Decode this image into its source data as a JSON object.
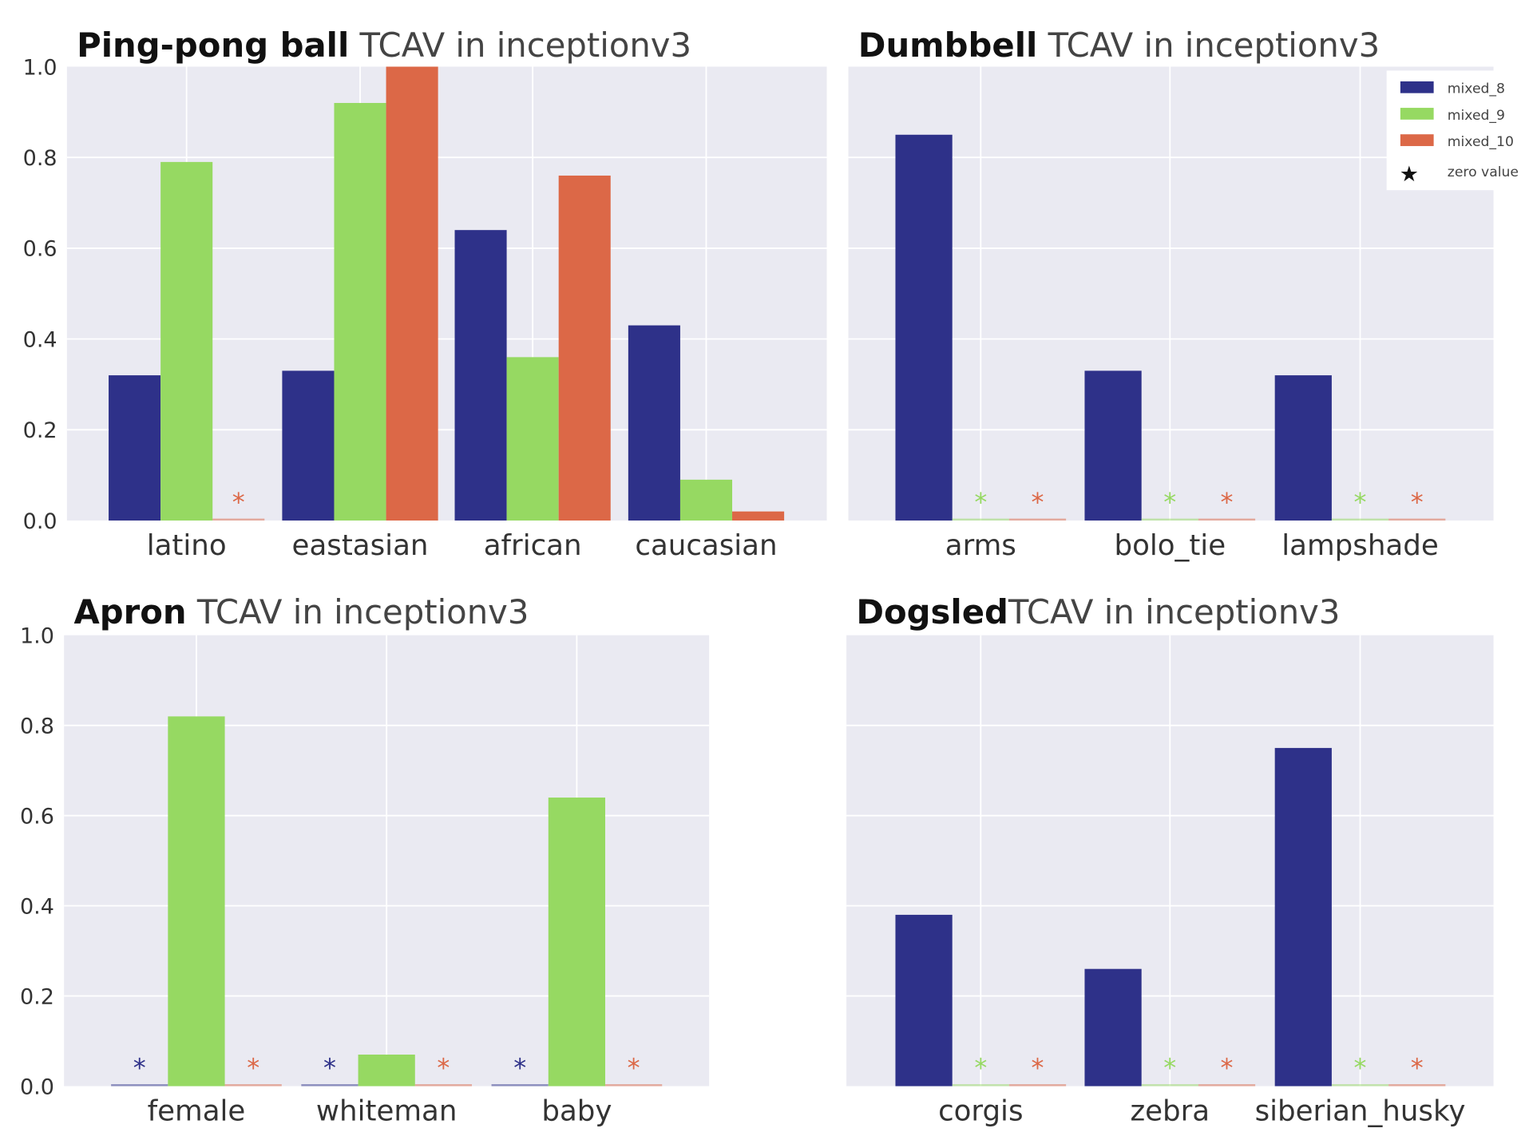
{
  "colors": {
    "mixed_8": "#2e3189",
    "mixed_9": "#96d962",
    "mixed_10": "#dc6847",
    "background": "#eaeaf2",
    "grid": "#ffffff"
  },
  "legend": {
    "items": [
      "mixed_8",
      "mixed_9",
      "mixed_10"
    ],
    "zero_label": "zero value",
    "placement": "top-right of Dumbbell panel"
  },
  "chart_data": [
    {
      "type": "bar",
      "title_bold": "Ping-pong ball",
      "title_rest": " TCAV in inceptionv3",
      "ylim": [
        0,
        1.0
      ],
      "yticks": [
        "0.0",
        "0.2",
        "0.4",
        "0.6",
        "0.8",
        "1.0"
      ],
      "grid": true,
      "categories": [
        "latino",
        "eastasian",
        "african",
        "caucasian"
      ],
      "series": [
        {
          "name": "mixed_8",
          "values": [
            0.32,
            0.33,
            0.64,
            0.43
          ]
        },
        {
          "name": "mixed_9",
          "values": [
            0.79,
            0.92,
            0.36,
            0.09
          ]
        },
        {
          "name": "mixed_10",
          "values": [
            0,
            1.0,
            0.76,
            0.02
          ]
        }
      ]
    },
    {
      "type": "bar",
      "title_bold": "Dumbbell",
      "title_rest": " TCAV in inceptionv3",
      "ylim": [
        0,
        1.0
      ],
      "yticks": [],
      "grid": true,
      "categories": [
        "arms",
        "bolo_tie",
        "lampshade"
      ],
      "series": [
        {
          "name": "mixed_8",
          "values": [
            0.85,
            0.33,
            0.32
          ]
        },
        {
          "name": "mixed_9",
          "values": [
            0,
            0,
            0
          ]
        },
        {
          "name": "mixed_10",
          "values": [
            0,
            0,
            0
          ]
        }
      ]
    },
    {
      "type": "bar",
      "title_bold": "Apron",
      "title_rest": " TCAV in inceptionv3",
      "ylim": [
        0,
        1.0
      ],
      "yticks": [
        "0.0",
        "0.2",
        "0.4",
        "0.6",
        "0.8",
        "1.0"
      ],
      "grid": true,
      "categories": [
        "female",
        "whiteman",
        "baby"
      ],
      "series": [
        {
          "name": "mixed_8",
          "values": [
            0,
            0,
            0
          ]
        },
        {
          "name": "mixed_9",
          "values": [
            0.82,
            0.07,
            0.64
          ]
        },
        {
          "name": "mixed_10",
          "values": [
            0,
            0,
            0
          ]
        }
      ]
    },
    {
      "type": "bar",
      "title_bold": "Dogsled",
      "title_rest": "TCAV in inceptionv3",
      "ylim": [
        0,
        1.0
      ],
      "yticks": [],
      "grid": true,
      "categories": [
        "corgis",
        "zebra",
        "siberian_husky"
      ],
      "series": [
        {
          "name": "mixed_8",
          "values": [
            0.38,
            0.26,
            0.75
          ]
        },
        {
          "name": "mixed_9",
          "values": [
            0,
            0,
            0
          ]
        },
        {
          "name": "mixed_10",
          "values": [
            0,
            0,
            0
          ]
        }
      ]
    }
  ]
}
